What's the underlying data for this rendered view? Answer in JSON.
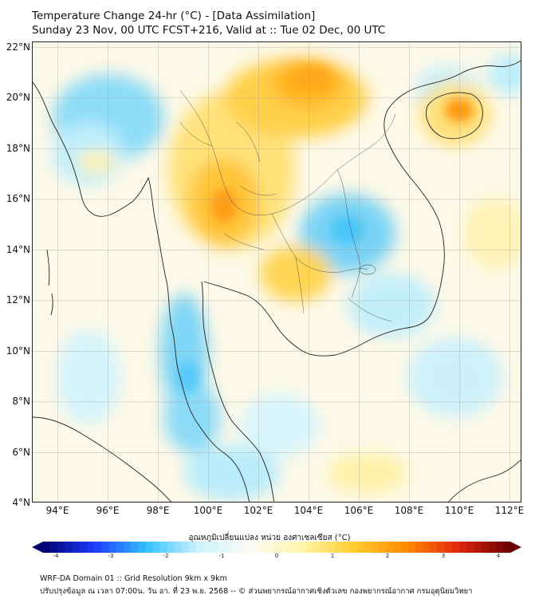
{
  "header": {
    "title": "Temperature Change 24-hr (°C) - [Data Assimilation]",
    "subtitle": "Sunday 23 Nov, 00 UTC FCST+216, Valid at :: Tue 02 Dec, 00 UTC"
  },
  "map": {
    "lat_labels": [
      "22°N",
      "20°N",
      "18°N",
      "16°N",
      "14°N",
      "12°N",
      "10°N",
      "8°N",
      "6°N",
      "4°N"
    ],
    "lon_labels": [
      "94°E",
      "96°E",
      "98°E",
      "100°E",
      "102°E",
      "104°E",
      "106°E",
      "108°E",
      "110°E",
      "112°E"
    ],
    "lat_range": [
      4,
      22.2
    ],
    "lon_range": [
      93,
      112.5
    ]
  },
  "colorbar": {
    "label": "อุณหภูมิเปลี่ยนแปลง หน่วย องศาเซลเซียส (°C)",
    "ticks": [
      "-4",
      "-3",
      "-2",
      "-1",
      "0",
      "1",
      "2",
      "3",
      "4"
    ],
    "min": -4,
    "max": 4,
    "colors": {
      "dark_blue": "#00006e",
      "blue": "#1c3cff",
      "cyan": "#36c2ff",
      "light_cyan": "#cdf3ff",
      "white": "#fbfbf6",
      "light_yellow": "#fff5a8",
      "yellow": "#ffcc2e",
      "orange": "#ff8a00",
      "red": "#e0260c",
      "dark_red": "#6a0000"
    }
  },
  "footer": {
    "line1": "WRF-DA Domain 01 :: Grid Resolution 9km x 9km",
    "line2": "ปรับปรุงข้อมูล ณ เวลา 07:00น. วัน อา. ที่ 23 พ.ย. 2568 -- © ส่วนพยากรณ์อากาศเชิงตัวเลข กองพยากรณ์อากาศ กรมอุตุนิยมวิทยา"
  }
}
